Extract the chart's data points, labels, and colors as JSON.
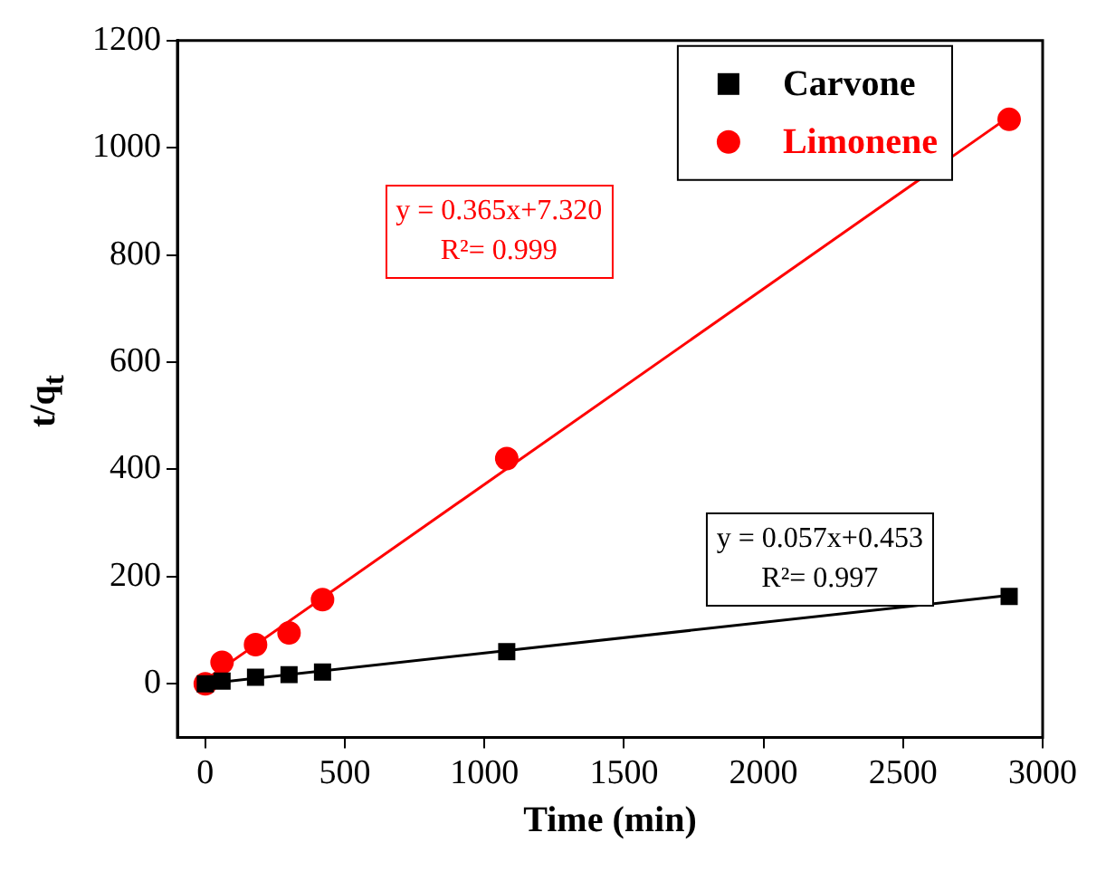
{
  "chart_data": {
    "type": "scatter",
    "xlabel": "Time (min)",
    "ylabel": "t/q$_{t}$",
    "xlim": [
      -100,
      3000
    ],
    "xticks": [
      0,
      500,
      1000,
      1500,
      2000,
      2500,
      3000
    ],
    "ylim": [
      -100,
      1200
    ],
    "yticks": [
      0,
      200,
      400,
      600,
      800,
      1000,
      1200
    ],
    "grid": false,
    "legend": "top right",
    "series": [
      {
        "name": "Carvone",
        "type": "scatter",
        "marker": "square",
        "color": "#000000",
        "x": [
          0,
          60,
          180,
          300,
          420,
          1080,
          2880
        ],
        "values": [
          0,
          5,
          12,
          17,
          22,
          60,
          163
        ]
      },
      {
        "name": "Limonene",
        "type": "scatter",
        "marker": "circle",
        "color": "#ff0000",
        "x": [
          0,
          60,
          180,
          300,
          420,
          1080,
          2880
        ],
        "values": [
          0,
          40,
          73,
          95,
          157,
          420,
          1053
        ]
      },
      {
        "type": "line",
        "color": "#ff0000",
        "x": [
          0,
          2880
        ],
        "values": [
          7,
          1058
        ]
      },
      {
        "type": "line",
        "color": "#000000",
        "x": [
          0,
          2880
        ],
        "values": [
          0,
          165
        ]
      }
    ],
    "annotations": [
      "y = 0.365x+7.320\nR²= 0.999",
      "y = 0.057x+0.453\nR²= 0.997"
    ]
  }
}
